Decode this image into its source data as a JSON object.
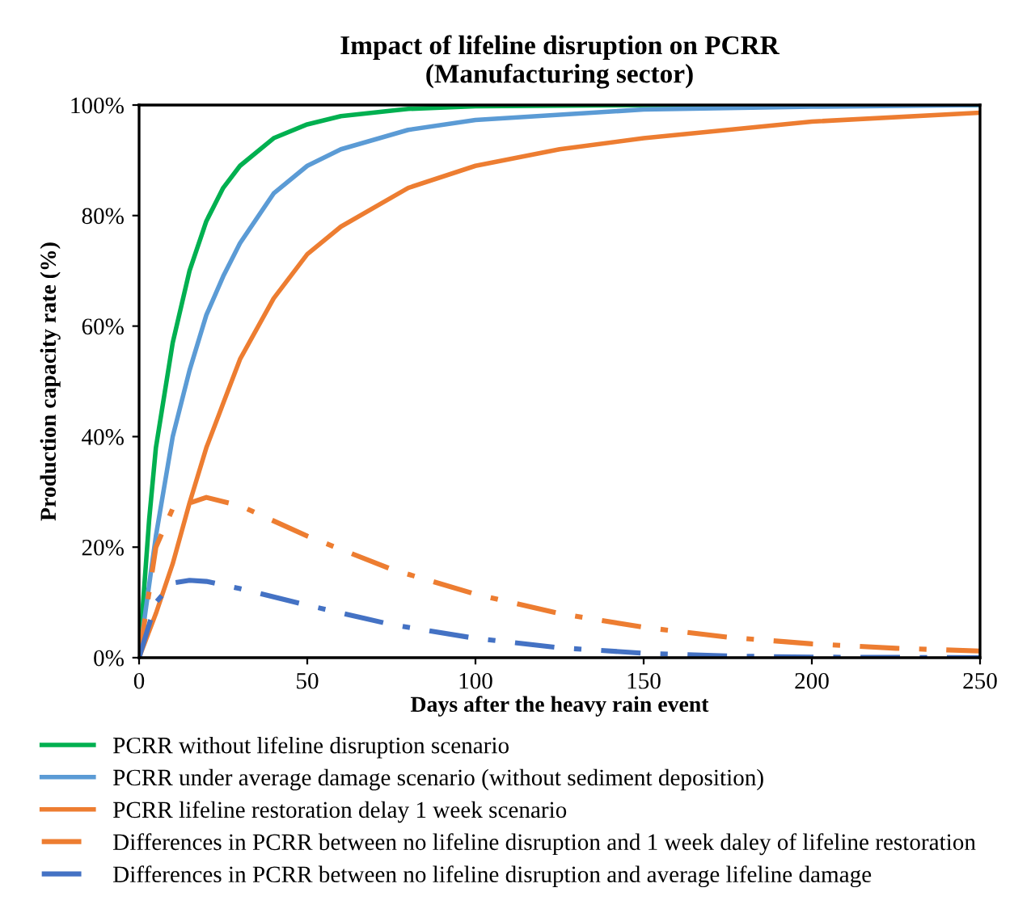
{
  "chart_data": {
    "type": "line",
    "title": "Impact of lifeline disruption on PCRR\n(Manufacturing sector)",
    "xlabel": "Days after the heavy rain event",
    "ylabel": "Production capacity rate (%)",
    "xlim": [
      0,
      250
    ],
    "xticks": [
      0,
      50,
      100,
      150,
      200,
      250
    ],
    "ylim": [
      0,
      100
    ],
    "yticks": [
      {
        "value": 0,
        "label": "0%"
      },
      {
        "value": 20,
        "label": "20%"
      },
      {
        "value": 40,
        "label": "40%"
      },
      {
        "value": 60,
        "label": "60%"
      },
      {
        "value": 80,
        "label": "80%"
      },
      {
        "value": 100,
        "label": "100%"
      }
    ],
    "grid": false,
    "legend": "bottom",
    "marker": "none",
    "series": [
      {
        "name": "PCRR without lifeline disruption scenario",
        "color": "#00b050",
        "line_style": "solid",
        "x": [
          0,
          3,
          5,
          10,
          15,
          20,
          25,
          30,
          40,
          50,
          60,
          80,
          100,
          150,
          250
        ],
        "values": [
          0,
          25,
          38,
          57,
          70,
          79,
          85,
          89,
          94,
          96.5,
          98,
          99.3,
          99.8,
          100,
          100
        ]
      },
      {
        "name": "PCRR under average damage scenario (without sediment deposition)",
        "color": "#5b9bd5",
        "line_style": "solid",
        "x": [
          0,
          5,
          10,
          15,
          20,
          25,
          30,
          40,
          50,
          60,
          80,
          100,
          150,
          200,
          250
        ],
        "values": [
          0,
          22,
          40,
          52,
          62,
          69,
          75,
          84,
          89,
          92,
          95.5,
          97.3,
          99.2,
          99.7,
          100
        ]
      },
      {
        "name": "PCRR lifeline restoration delay 1 week scenario",
        "color": "#ed7d31",
        "line_style": "solid",
        "x": [
          0,
          5,
          10,
          15,
          20,
          25,
          30,
          40,
          50,
          60,
          80,
          100,
          125,
          150,
          200,
          250
        ],
        "values": [
          0,
          8,
          17,
          28,
          38,
          46,
          54,
          65,
          73,
          78,
          85,
          89,
          92,
          94,
          97,
          98.6
        ]
      },
      {
        "name": "Differences in PCRR between no lifeline disruption and 1 week daley of lifeline restoration",
        "color": "#ed7d31",
        "line_style": "dashdot",
        "x": [
          0,
          5,
          10,
          20,
          30,
          50,
          75,
          100,
          125,
          150,
          175,
          200,
          225,
          250
        ],
        "values": [
          0,
          20,
          27,
          29,
          27.5,
          22,
          16,
          11.5,
          8,
          5.5,
          3.7,
          2.5,
          1.7,
          1.2
        ]
      },
      {
        "name": "Differences in PCRR between no lifeline disruption and average lifeline damage",
        "color": "#4472c4",
        "line_style": "dashdot",
        "x": [
          0,
          5,
          10,
          15,
          20,
          30,
          50,
          75,
          100,
          125,
          150,
          175,
          200,
          250
        ],
        "values": [
          0,
          10,
          13.5,
          14,
          13.8,
          12.5,
          9.5,
          6,
          3.5,
          1.8,
          0.8,
          0.3,
          0.1,
          0
        ]
      }
    ]
  }
}
